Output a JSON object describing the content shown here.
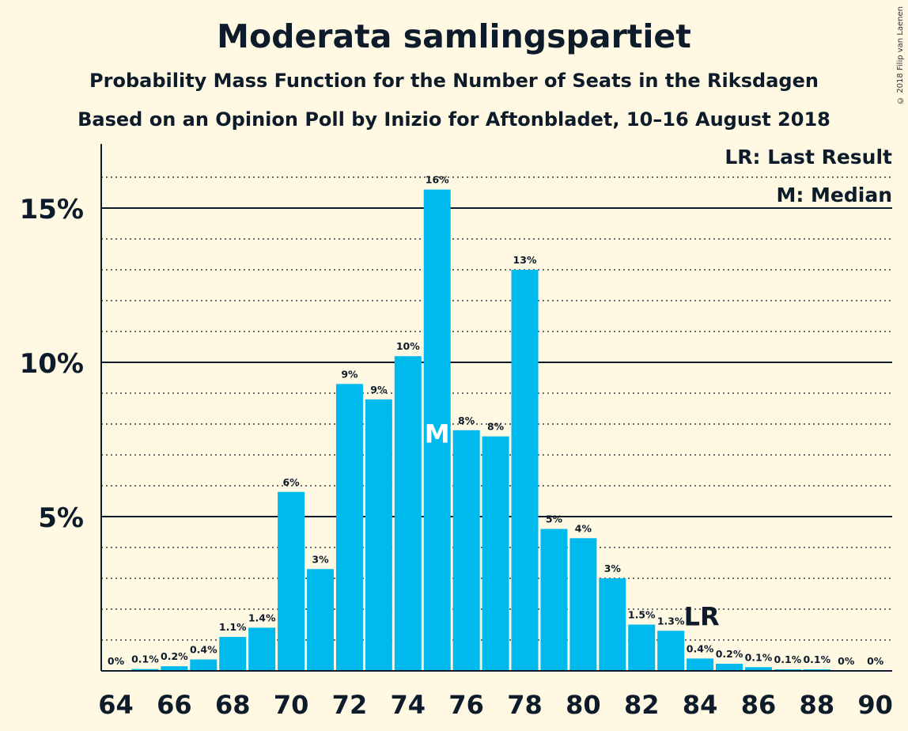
{
  "title": "Moderata samlingspartiet",
  "subtitle1": "Probability Mass Function for the Number of Seats in the Riksdagen",
  "subtitle2": "Based on an Opinion Poll by Inizio for Aftonbladet, 10–16 August 2018",
  "copyright": "© 2018 Filip van Laenen",
  "legend": {
    "last_result": "LR: Last Result",
    "median": "M: Median"
  },
  "colors": {
    "bar": "#00b9ed",
    "background": "#fff9e3",
    "text": "#0d1b2a"
  },
  "chart_data": {
    "type": "bar",
    "title": "Moderata samlingspartiet",
    "xlabel": "",
    "ylabel": "",
    "x": [
      64,
      65,
      66,
      67,
      68,
      69,
      70,
      71,
      72,
      73,
      74,
      75,
      76,
      77,
      78,
      79,
      80,
      81,
      82,
      83,
      84,
      85,
      86,
      87,
      88,
      89,
      90
    ],
    "values": [
      0,
      0.06,
      0.15,
      0.37,
      1.1,
      1.4,
      5.8,
      3.3,
      9.3,
      8.8,
      10.2,
      15.6,
      7.8,
      7.6,
      13.0,
      4.6,
      4.3,
      3.0,
      1.5,
      1.3,
      0.4,
      0.23,
      0.12,
      0.05,
      0.05,
      0,
      0
    ],
    "labels": [
      "0%",
      "0.1%",
      "0.2%",
      "0.4%",
      "1.1%",
      "1.4%",
      "6%",
      "3%",
      "9%",
      "9%",
      "10%",
      "16%",
      "8%",
      "8%",
      "13%",
      "5%",
      "4%",
      "3%",
      "1.5%",
      "1.3%",
      "0.4%",
      "0.2%",
      "0.1%",
      "0.1%",
      "0.1%",
      "0%",
      "0%"
    ],
    "x_tick_labels": [
      "64",
      "66",
      "68",
      "70",
      "72",
      "74",
      "76",
      "78",
      "80",
      "82",
      "84",
      "86",
      "88",
      "90"
    ],
    "y_tick_labels": [
      "5%",
      "10%",
      "15%"
    ],
    "y_ticks": [
      5,
      10,
      15
    ],
    "ylim": [
      0,
      17
    ],
    "median": 75,
    "median_label": "M",
    "last_result": 84,
    "last_result_label": "LR",
    "grid": true
  }
}
